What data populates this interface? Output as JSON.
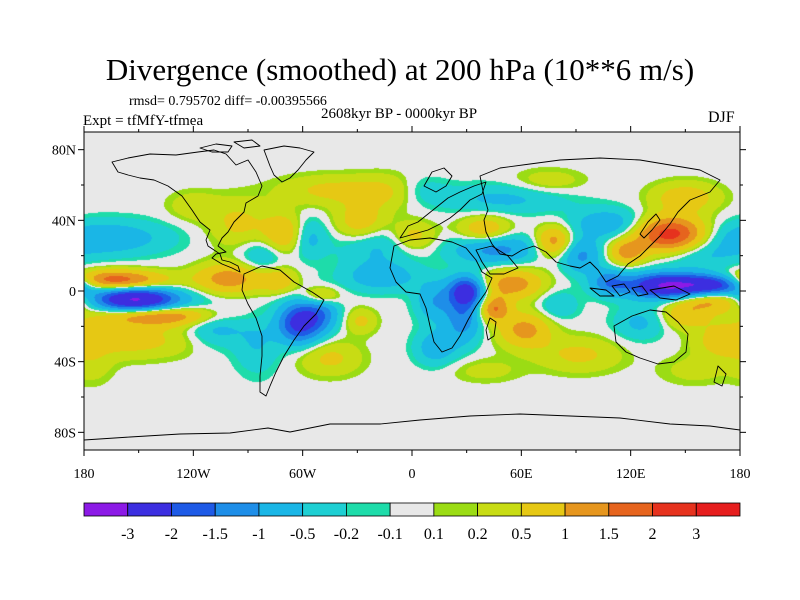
{
  "title": "Divergence (smoothed) at 200 hPa (10**6 m/s)",
  "stats": "rmsd= 0.795702  diff= -0.00395566",
  "experiment": "Expt = tfMfY-tfmea",
  "period": "2608kyr BP - 0000kyr BP",
  "season": "DJF",
  "axes": {
    "lat_labels": [
      "80N",
      "40N",
      "0",
      "40S",
      "80S"
    ],
    "lat_values": [
      80,
      40,
      0,
      -40,
      -80
    ],
    "lon_labels": [
      "180",
      "120W",
      "60W",
      "0",
      "60E",
      "120E",
      "180"
    ],
    "lon_values": [
      -180,
      -120,
      -60,
      0,
      60,
      120,
      180
    ]
  },
  "colorbar": {
    "colors": [
      "#8c1ae6",
      "#3c2ee0",
      "#1e5ae6",
      "#1e8ee8",
      "#1ab6e6",
      "#1ecfd3",
      "#1edcaa",
      "#e8e8e8",
      "#9bdc14",
      "#c8dc14",
      "#e6c814",
      "#e6961e",
      "#e6641e",
      "#e6321e",
      "#e61e1e"
    ],
    "labels": [
      "-3",
      "-2",
      "-1.5",
      "-1",
      "-0.5",
      "-0.2",
      "-0.1",
      "0.1",
      "0.2",
      "0.5",
      "1",
      "1.5",
      "2",
      "3"
    ]
  },
  "chart_data": {
    "type": "heatmap",
    "title": "Divergence (smoothed) at 200 hPa (10**6 m/s)",
    "variable": "200 hPa divergence difference",
    "units": "10**6 m/s",
    "levels": [
      -3,
      -2,
      -1.5,
      -1,
      -0.5,
      -0.2,
      -0.1,
      0.1,
      0.2,
      0.5,
      1,
      1.5,
      2,
      3
    ],
    "xlim": [
      -180,
      180
    ],
    "ylim": [
      -90,
      90
    ],
    "centers": [
      {
        "lon": -152,
        "lat": -5,
        "value": -3.2,
        "sx": 17,
        "sy": 5
      },
      {
        "lon": -165,
        "lat": 6,
        "value": 2.0,
        "sx": 20,
        "sy": 4
      },
      {
        "lon": -140,
        "lat": -14,
        "value": 1.6,
        "sx": 24,
        "sy": 4
      },
      {
        "lon": -100,
        "lat": 7,
        "value": 1.3,
        "sx": 13,
        "sy": 6
      },
      {
        "lon": -170,
        "lat": 30,
        "value": -0.9,
        "sx": 25,
        "sy": 7
      },
      {
        "lon": -155,
        "lat": -28,
        "value": 0.7,
        "sx": 25,
        "sy": 7
      },
      {
        "lon": -108,
        "lat": -20,
        "value": -0.7,
        "sx": 11,
        "sy": 8
      },
      {
        "lon": -85,
        "lat": -30,
        "value": -0.5,
        "sx": 9,
        "sy": 12
      },
      {
        "lon": -95,
        "lat": 38,
        "value": 0.6,
        "sx": 12,
        "sy": 10
      },
      {
        "lon": -82,
        "lat": 20,
        "value": -0.6,
        "sx": 9,
        "sy": 7
      },
      {
        "lon": -73,
        "lat": 6,
        "value": 0.8,
        "sx": 7,
        "sy": 5
      },
      {
        "lon": -70,
        "lat": 32,
        "value": 1.0,
        "sx": 8,
        "sy": 8
      },
      {
        "lon": -57,
        "lat": 30,
        "value": -0.7,
        "sx": 7,
        "sy": 8
      },
      {
        "lon": -45,
        "lat": 57,
        "value": 0.6,
        "sx": 20,
        "sy": 6
      },
      {
        "lon": -12,
        "lat": 56,
        "value": 0.5,
        "sx": 14,
        "sy": 7
      },
      {
        "lon": 5,
        "lat": 57,
        "value": -0.4,
        "sx": 10,
        "sy": 6
      },
      {
        "lon": 50,
        "lat": 52,
        "value": -0.6,
        "sx": 25,
        "sy": 6
      },
      {
        "lon": 75,
        "lat": 62,
        "value": 0.4,
        "sx": 14,
        "sy": 5
      },
      {
        "lon": 150,
        "lat": 53,
        "value": 0.8,
        "sx": 13,
        "sy": 6
      },
      {
        "lon": -62,
        "lat": -18,
        "value": -2.3,
        "sx": 8,
        "sy": 8
      },
      {
        "lon": -50,
        "lat": -12,
        "value": -1.2,
        "sx": 7,
        "sy": 8
      },
      {
        "lon": -50,
        "lat": -3,
        "value": 1.1,
        "sx": 7,
        "sy": 4
      },
      {
        "lon": -45,
        "lat": -38,
        "value": 0.6,
        "sx": 12,
        "sy": 7
      },
      {
        "lon": -28,
        "lat": -17,
        "value": 0.6,
        "sx": 6,
        "sy": 5
      },
      {
        "lon": -17,
        "lat": 8,
        "value": -0.8,
        "sx": 15,
        "sy": 6
      },
      {
        "lon": -20,
        "lat": 27,
        "value": -0.7,
        "sx": 15,
        "sy": 8
      },
      {
        "lon": -28,
        "lat": 38,
        "value": 0.9,
        "sx": 10,
        "sy": 8
      },
      {
        "lon": 0,
        "lat": 31,
        "value": 0.8,
        "sx": 9,
        "sy": 6
      },
      {
        "lon": 12,
        "lat": -6,
        "value": -0.9,
        "sx": 7,
        "sy": 8
      },
      {
        "lon": 30,
        "lat": 0,
        "value": -2.3,
        "sx": 7,
        "sy": 6
      },
      {
        "lon": 28,
        "lat": -15,
        "value": -1.3,
        "sx": 7,
        "sy": 10
      },
      {
        "lon": 13,
        "lat": -32,
        "value": -0.8,
        "sx": 8,
        "sy": 7
      },
      {
        "lon": 45,
        "lat": -10,
        "value": 1.5,
        "sx": 6,
        "sy": 5
      },
      {
        "lon": 55,
        "lat": 4,
        "value": 1.3,
        "sx": 12,
        "sy": 6
      },
      {
        "lon": 62,
        "lat": -22,
        "value": 1.2,
        "sx": 10,
        "sy": 7
      },
      {
        "lon": 45,
        "lat": 24,
        "value": -1.3,
        "sx": 16,
        "sy": 6
      },
      {
        "lon": 40,
        "lat": 34,
        "value": 1.0,
        "sx": 10,
        "sy": 6
      },
      {
        "lon": 78,
        "lat": 28,
        "value": 1.3,
        "sx": 7,
        "sy": 6
      },
      {
        "lon": 93,
        "lat": 20,
        "value": -1.1,
        "sx": 8,
        "sy": 7
      },
      {
        "lon": 80,
        "lat": -8,
        "value": -0.5,
        "sx": 8,
        "sy": 6
      },
      {
        "lon": 92,
        "lat": -36,
        "value": 0.6,
        "sx": 16,
        "sy": 7
      },
      {
        "lon": 108,
        "lat": 38,
        "value": -0.9,
        "sx": 14,
        "sy": 6
      },
      {
        "lon": 142,
        "lat": 32,
        "value": 2.4,
        "sx": 14,
        "sy": 7
      },
      {
        "lon": 118,
        "lat": 22,
        "value": 1.2,
        "sx": 7,
        "sy": 5
      },
      {
        "lon": 108,
        "lat": 5,
        "value": -1.2,
        "sx": 7,
        "sy": 5
      },
      {
        "lon": 140,
        "lat": 3,
        "value": -3.1,
        "sx": 16,
        "sy": 5
      },
      {
        "lon": 168,
        "lat": 4,
        "value": -2.3,
        "sx": 12,
        "sy": 4
      },
      {
        "lon": 165,
        "lat": -6,
        "value": 1.2,
        "sx": 14,
        "sy": 4
      },
      {
        "lon": 158,
        "lat": 20,
        "value": -0.5,
        "sx": 15,
        "sy": 6
      },
      {
        "lon": 125,
        "lat": -18,
        "value": -0.6,
        "sx": 10,
        "sy": 7
      },
      {
        "lon": 150,
        "lat": -14,
        "value": 0.8,
        "sx": 9,
        "sy": 5
      },
      {
        "lon": 170,
        "lat": -28,
        "value": 0.6,
        "sx": 10,
        "sy": 7
      },
      {
        "lon": 155,
        "lat": -45,
        "value": 0.3,
        "sx": 14,
        "sy": 6
      },
      {
        "lon": 40,
        "lat": -45,
        "value": 0.3,
        "sx": 14,
        "sy": 5
      },
      {
        "lon": -120,
        "lat": 48,
        "value": 0.4,
        "sx": 10,
        "sy": 6
      },
      {
        "lon": -175,
        "lat": -42,
        "value": 0.3,
        "sx": 8,
        "sy": 8
      }
    ]
  }
}
